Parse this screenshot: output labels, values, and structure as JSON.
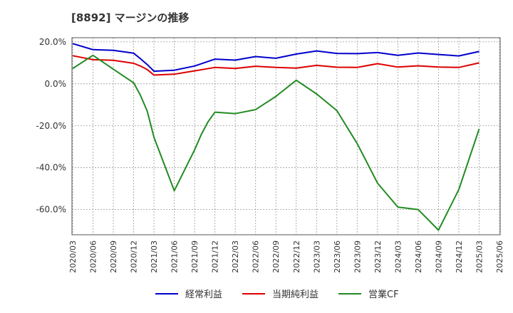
{
  "title": "[8892]  マージンの推移",
  "chart_data": {
    "type": "line",
    "x": [
      "2020/03",
      "2020/06",
      "2020/09",
      "2020/12",
      "2021/03",
      "2021/06",
      "2021/09",
      "2021/12",
      "2022/03",
      "2022/06",
      "2022/09",
      "2022/12",
      "2023/03",
      "2023/06",
      "2023/09",
      "2023/12",
      "2024/03",
      "2024/06",
      "2024/09",
      "2024/12",
      "2025/03",
      "2025/06"
    ],
    "ylim": [
      -72,
      22
    ],
    "yticks": [
      20,
      0,
      -20,
      -40,
      -60
    ],
    "ytick_labels": [
      "20.0%",
      "0.0%",
      "-20.0%",
      "-40.0%",
      "-60.0%"
    ],
    "grid": true,
    "legend_position": "bottom",
    "series": [
      {
        "name": "経常利益",
        "color": "#0000cc",
        "points": [
          [
            "2020/03",
            19.2
          ],
          [
            "2020/06",
            16.3
          ],
          [
            "2020/09",
            16.0
          ],
          [
            "2020/12",
            14.6
          ],
          [
            "2021/01",
            12.0
          ],
          [
            "2021/02",
            9.2
          ],
          [
            "2021/03",
            6.0
          ],
          [
            "2021/06",
            6.5
          ],
          [
            "2021/09",
            8.5
          ],
          [
            "2021/12",
            11.8
          ],
          [
            "2022/03",
            11.3
          ],
          [
            "2022/06",
            13.0
          ],
          [
            "2022/09",
            12.2
          ],
          [
            "2022/12",
            14.2
          ],
          [
            "2023/03",
            15.7
          ],
          [
            "2023/06",
            14.5
          ],
          [
            "2023/09",
            14.4
          ],
          [
            "2023/12",
            14.9
          ],
          [
            "2024/03",
            13.6
          ],
          [
            "2024/06",
            14.7
          ],
          [
            "2024/09",
            14.0
          ],
          [
            "2024/12",
            13.3
          ],
          [
            "2025/03",
            15.4
          ]
        ]
      },
      {
        "name": "当期純利益",
        "color": "#dd0000",
        "points": [
          [
            "2020/03",
            13.4
          ],
          [
            "2020/06",
            11.5
          ],
          [
            "2020/09",
            11.2
          ],
          [
            "2020/12",
            9.8
          ],
          [
            "2021/01",
            8.5
          ],
          [
            "2021/02",
            6.8
          ],
          [
            "2021/03",
            4.2
          ],
          [
            "2021/06",
            4.6
          ],
          [
            "2021/09",
            6.2
          ],
          [
            "2021/12",
            7.8
          ],
          [
            "2022/03",
            7.3
          ],
          [
            "2022/06",
            8.4
          ],
          [
            "2022/09",
            7.8
          ],
          [
            "2022/12",
            7.5
          ],
          [
            "2023/03",
            8.8
          ],
          [
            "2023/06",
            7.9
          ],
          [
            "2023/09",
            7.8
          ],
          [
            "2023/12",
            9.6
          ],
          [
            "2024/03",
            8.0
          ],
          [
            "2024/06",
            8.6
          ],
          [
            "2024/09",
            8.0
          ],
          [
            "2024/12",
            7.8
          ],
          [
            "2025/03",
            10.0
          ]
        ]
      },
      {
        "name": "営業CF",
        "color": "#228b22",
        "points": [
          [
            "2020/03",
            7.3
          ],
          [
            "2020/06",
            13.6
          ],
          [
            "2020/09",
            7.0
          ],
          [
            "2020/12",
            0.5
          ],
          [
            "2021/01",
            -5.5
          ],
          [
            "2021/02",
            -13.0
          ],
          [
            "2021/03",
            -25.5
          ],
          [
            "2021/06",
            -51.0
          ],
          [
            "2021/09",
            -31.5
          ],
          [
            "2021/10",
            -24.0
          ],
          [
            "2021/11",
            -18.0
          ],
          [
            "2021/12",
            -13.5
          ],
          [
            "2022/03",
            -14.2
          ],
          [
            "2022/06",
            -12.3
          ],
          [
            "2022/09",
            -6.0
          ],
          [
            "2022/12",
            1.7
          ],
          [
            "2023/03",
            -4.8
          ],
          [
            "2023/06",
            -12.8
          ],
          [
            "2023/09",
            -28.5
          ],
          [
            "2023/12",
            -47.4
          ],
          [
            "2024/03",
            -58.8
          ],
          [
            "2024/06",
            -60.0
          ],
          [
            "2024/09",
            -69.8
          ],
          [
            "2024/12",
            -50.4
          ],
          [
            "2025/03",
            -21.5
          ]
        ]
      }
    ]
  }
}
